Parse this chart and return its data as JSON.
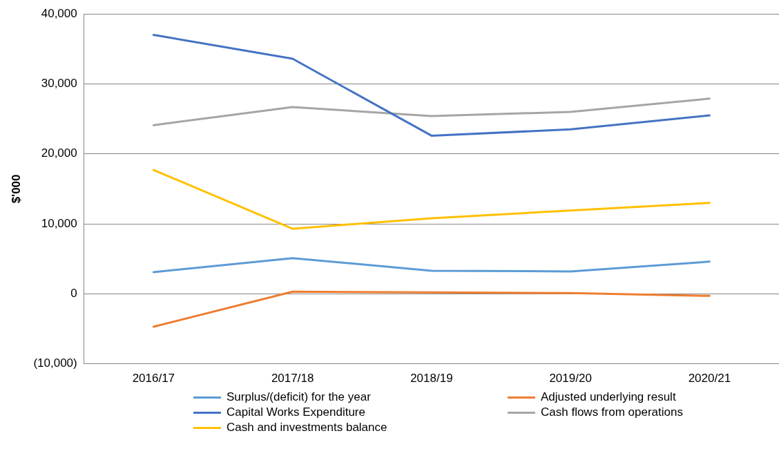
{
  "chart_data": {
    "type": "line",
    "ylabel": "$'000",
    "categories": [
      "2016/17",
      "2017/18",
      "2018/19",
      "2019/20",
      "2020/21"
    ],
    "series": [
      {
        "name": "Surplus/(deficit) for the year",
        "color": "#5b9bd5",
        "values": [
          3100,
          5100,
          3300,
          3200,
          4600
        ]
      },
      {
        "name": "Adjusted underlying result",
        "color": "#ed7d31",
        "values": [
          -4700,
          300,
          200,
          100,
          -300
        ]
      },
      {
        "name": "Capital Works Expenditure",
        "color": "#4472c4",
        "values": [
          37000,
          33600,
          22600,
          23500,
          25500
        ]
      },
      {
        "name": "Cash flows from operations",
        "color": "#a5a5a5",
        "values": [
          24100,
          26700,
          25400,
          26000,
          27900
        ]
      },
      {
        "name": "Cash and investments balance",
        "color": "#ffc000",
        "values": [
          17700,
          9300,
          10800,
          11900,
          13000
        ]
      }
    ],
    "ylim": [
      -10000,
      40000
    ],
    "yticks": [
      {
        "value": -10000,
        "label": "(10,000)"
      },
      0,
      {
        "value": 10000,
        "label": "10,000"
      },
      {
        "value": 20000,
        "label": "20,000"
      },
      {
        "value": 30000,
        "label": "30,000"
      },
      {
        "value": 40000,
        "label": "40,000"
      }
    ],
    "grid": "y",
    "legend": "bottom",
    "marker": "none",
    "line_style": "solid"
  }
}
